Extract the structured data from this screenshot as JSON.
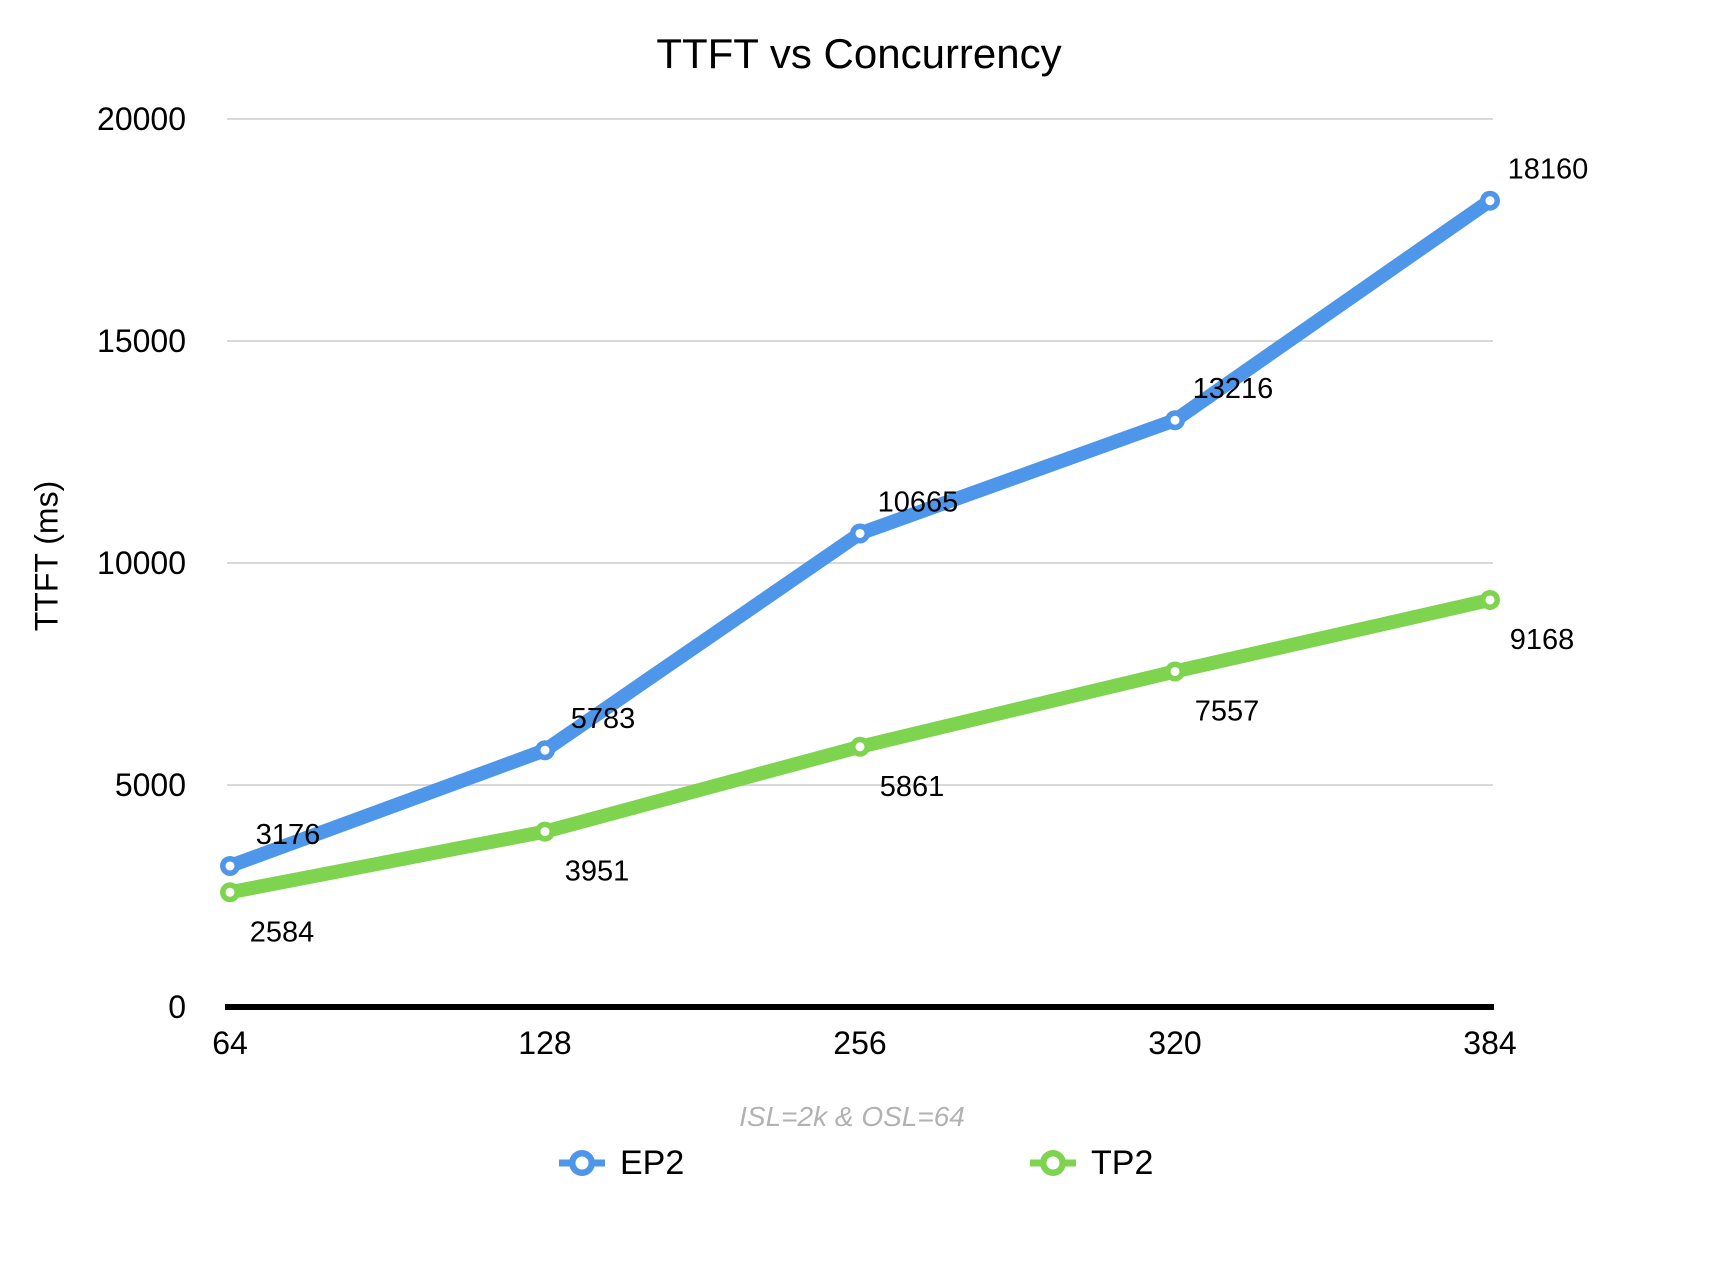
{
  "chart_data": {
    "type": "line",
    "title": "TTFT vs Concurrency",
    "ylabel": "TTFT (ms)",
    "xlabel": "",
    "note": "ISL=2k & OSL=64",
    "categories": [
      "64",
      "128",
      "256",
      "320",
      "384"
    ],
    "series": [
      {
        "name": "EP2",
        "color": "#4e96ea",
        "values": [
          3176,
          5783,
          10665,
          13216,
          18160
        ]
      },
      {
        "name": "TP2",
        "color": "#7ed34f",
        "values": [
          2584,
          3951,
          5861,
          7557,
          9168
        ]
      }
    ],
    "ylim": [
      0,
      20000
    ],
    "yticks": [
      0,
      5000,
      10000,
      15000,
      20000
    ],
    "grid": true,
    "legend_position": "bottom",
    "data_labels_shown": true
  },
  "colors": {
    "grid": "#d9d9d9",
    "axis": "#000000",
    "note_text": "#b2b2b2",
    "label_text": "#000000",
    "background": "#ffffff"
  }
}
